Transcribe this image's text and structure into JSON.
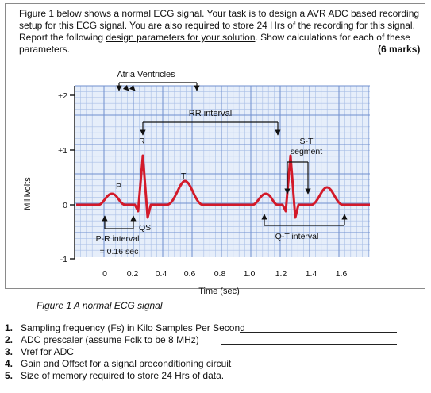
{
  "intro": {
    "text_before": "Figure 1 below shows a normal ECG signal. Your task is to design a AVR ADC based recording setup for this ECG signal. You are also required to store 24 Hrs of the recording for this signal. Report the following ",
    "underlined": "design parameters for your solution",
    "text_after": ". Show calculations for each of these parameters.",
    "marks": "(6 marks)"
  },
  "figure": {
    "y_axis_label": "Millivolts",
    "y_ticks": [
      "+2",
      "+1",
      "0",
      "-1"
    ],
    "x_ticks": [
      "0",
      "0.2",
      "0.4",
      "0.6",
      "0.8",
      "1.0",
      "1.2",
      "1.4",
      "1.6"
    ],
    "x_axis_label": "Time (sec)",
    "annotations": {
      "atria_ventricles": "Atria Ventricles",
      "rr_interval": "RR interval",
      "st": "S-T",
      "segment": "segment",
      "r": "R",
      "t": "T",
      "p": "P",
      "qs": "QS",
      "pr_interval": "P-R interval",
      "pr_value": "= 0.16 sec",
      "qt_interval": "Q-T interval"
    },
    "colors": {
      "grid": "#7f9fd6",
      "grid_bg": "#e6eefa",
      "trace": "#d31a2a"
    }
  },
  "caption": "Figure 1 A normal ECG signal",
  "questions": [
    {
      "num": "1.",
      "text": "Sampling frequency (Fs) in Kilo Samples Per Second"
    },
    {
      "num": "2.",
      "text": "ADC prescaler (assume Fclk to be 8 MHz)"
    },
    {
      "num": "3.",
      "text": "Vref for ADC"
    },
    {
      "num": "4.",
      "text": "Gain and Offset for a signal preconditioning circuit"
    },
    {
      "num": "5.",
      "text": "Size of memory required to store 24 Hrs of data."
    }
  ]
}
